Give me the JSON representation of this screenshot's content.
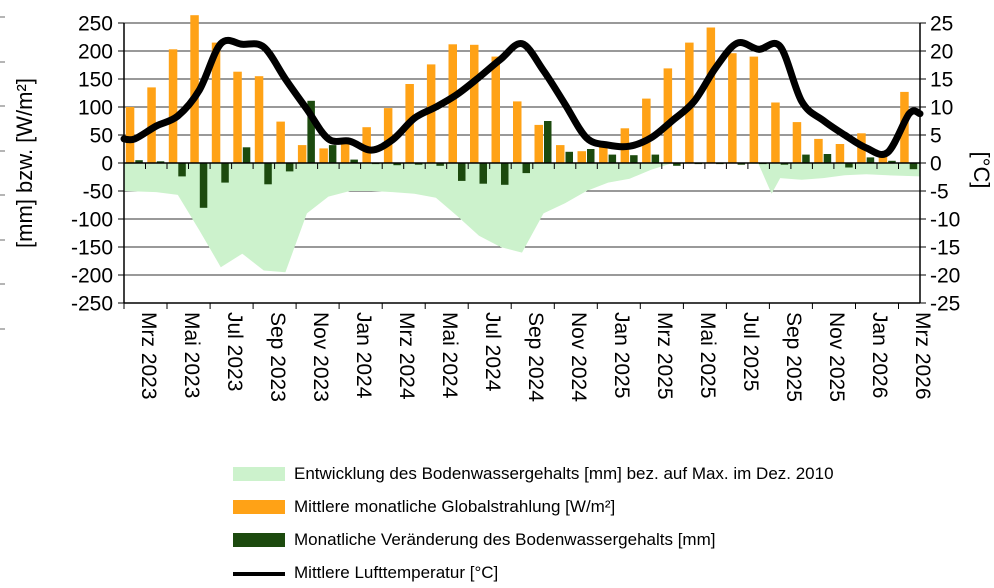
{
  "chart_data": {
    "type": "combo",
    "title": "",
    "categories": [
      "Mrz 2023",
      "Apr 2023",
      "Mai 2023",
      "Jun 2023",
      "Jul 2023",
      "Aug 2023",
      "Sep 2023",
      "Okt 2023",
      "Nov 2023",
      "Dez 2023",
      "Jan 2024",
      "Feb 2024",
      "Mrz 2024",
      "Apr 2024",
      "Mai 2024",
      "Jun 2024",
      "Jul 2024",
      "Aug 2024",
      "Sep 2024",
      "Okt 2024",
      "Nov 2024",
      "Dez 2024",
      "Jan 2025",
      "Feb 2025",
      "Mrz 2025",
      "Apr 2025",
      "Mai 2025",
      "Jun 2025",
      "Jul 2025",
      "Aug 2025",
      "Sep 2025",
      "Okt 2025",
      "Nov 2025",
      "Dez 2025",
      "Jan 2026",
      "Feb 2026",
      "Mrz 2026"
    ],
    "x_tick_label_every": 2,
    "grid": true,
    "legend_position": "bottom",
    "left_axis": {
      "label": "[mm] bzw. [W/m²]",
      "min": -250,
      "max": 250,
      "step": 50,
      "ticks": [
        "250",
        "200",
        "150",
        "100",
        "50",
        "0",
        "-50",
        "-100",
        "-150",
        "-200",
        "-250"
      ]
    },
    "right_axis": {
      "label": "[°C]",
      "min": -25,
      "max": 25,
      "step": 5,
      "ticks": [
        "25",
        "20",
        "15",
        "10",
        "5",
        "0",
        "-5",
        "-10",
        "-15",
        "-20",
        "-25"
      ]
    },
    "series": [
      {
        "name": "Entwicklung des Bodenwassergehalts [mm] bez. auf Max. im Dez. 2010",
        "type": "area",
        "axis": "left",
        "color": "#CCF2CC",
        "points": [
          [
            0,
            -50
          ],
          [
            1,
            -52
          ],
          [
            2,
            -57
          ],
          [
            3,
            -120
          ],
          [
            4,
            -186
          ],
          [
            5,
            -162
          ],
          [
            6,
            -192
          ],
          [
            7,
            -195
          ],
          [
            8,
            -90
          ],
          [
            9,
            -60
          ],
          [
            10,
            -50
          ],
          [
            11,
            -50
          ],
          [
            12,
            -52
          ],
          [
            13,
            -55
          ],
          [
            14,
            -62
          ],
          [
            15,
            -95
          ],
          [
            16,
            -130
          ],
          [
            17,
            -150
          ],
          [
            18,
            -160
          ],
          [
            19,
            -90
          ],
          [
            20,
            -72
          ],
          [
            21,
            -50
          ],
          [
            22,
            -35
          ],
          [
            23,
            -28
          ],
          [
            24,
            -12
          ],
          [
            25,
            0
          ],
          [
            26,
            0
          ],
          [
            27,
            0
          ],
          [
            28,
            0
          ],
          [
            29,
            -2
          ],
          [
            29.6,
            -55
          ],
          [
            30,
            -27
          ],
          [
            31,
            -30
          ],
          [
            32,
            -27
          ],
          [
            33,
            -22
          ],
          [
            34,
            -20
          ],
          [
            35,
            -22
          ],
          [
            36,
            -24
          ]
        ]
      },
      {
        "name": "Mittlere monatliche Globalstrahlung [W/m²]",
        "type": "bar",
        "axis": "left",
        "color": "#FFA216",
        "values": [
          100,
          135,
          203,
          264,
          215,
          163,
          155,
          74,
          32,
          26,
          40,
          64,
          98,
          141,
          176,
          212,
          211,
          190,
          110,
          68,
          32,
          21,
          30,
          62,
          115,
          169,
          215,
          242,
          196,
          190,
          108,
          73,
          43,
          34,
          53,
          18,
          127
        ]
      },
      {
        "name": "Monatliche Veränderung des Bodenwassergehalts [mm]",
        "type": "bar",
        "axis": "left",
        "color": "#1C4A0E",
        "values": [
          5,
          3,
          -24,
          -80,
          -35,
          28,
          -38,
          -15,
          111,
          32,
          6,
          -2,
          -4,
          -3,
          -5,
          -32,
          -37,
          -39,
          -18,
          75,
          20,
          25,
          15,
          14,
          15,
          -5,
          -2,
          -2,
          -3,
          -2,
          -3,
          15,
          16,
          -8,
          10,
          4,
          -11
        ]
      },
      {
        "name": "Mittlere Lufttemperatur [°C]",
        "type": "line",
        "axis": "right",
        "color": "#000000",
        "values": [
          4.3,
          6.6,
          8.4,
          13.0,
          21.3,
          21.2,
          20.7,
          15.0,
          9.6,
          4.3,
          3.9,
          2.3,
          4.2,
          8.0,
          10.0,
          12.3,
          15.3,
          18.5,
          21.3,
          16.5,
          10.5,
          4.5,
          3.2,
          3.0,
          4.5,
          7.6,
          11.0,
          17.0,
          21.4,
          20.3,
          20.8,
          11.0,
          7.6,
          5.0,
          2.7,
          1.9,
          8.8
        ]
      }
    ]
  },
  "legend": {
    "items": [
      {
        "label": "Entwicklung des Bodenwassergehalts [mm] bez. auf Max. im Dez. 2010"
      },
      {
        "label": "Mittlere monatliche Globalstrahlung [W/m²]"
      },
      {
        "label": "Monatliche Veränderung des Bodenwassergehalts [mm]"
      },
      {
        "label": "Mittlere Lufttemperatur [°C]"
      }
    ]
  }
}
